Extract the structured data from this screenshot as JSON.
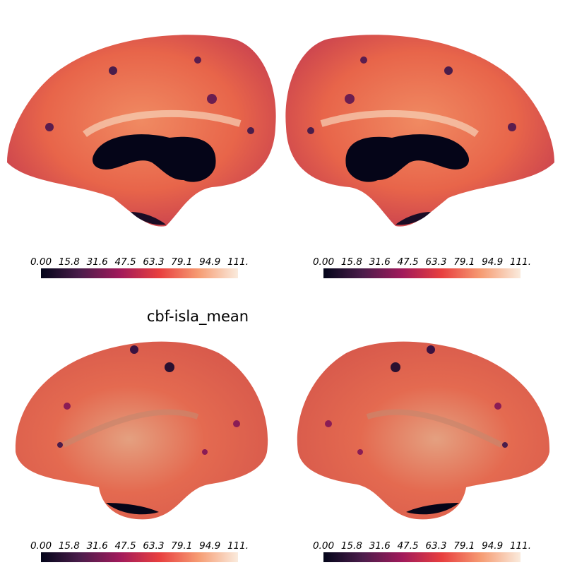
{
  "title": "cbf-isla_mean",
  "colorbars": [
    {
      "ticks": [
        "0.00",
        "15.8",
        "31.6",
        "47.5",
        "63.3",
        "79.1",
        "94.9",
        "111."
      ]
    },
    {
      "ticks": [
        "0.00",
        "15.8",
        "31.6",
        "47.5",
        "63.3",
        "79.1",
        "94.9",
        "111."
      ]
    },
    {
      "ticks": [
        "0.00",
        "15.8",
        "31.6",
        "47.5",
        "63.3",
        "79.1",
        "94.9",
        "111."
      ]
    },
    {
      "ticks": [
        "0.00",
        "15.8",
        "31.6",
        "47.5",
        "63.3",
        "79.1",
        "94.9",
        "111."
      ]
    }
  ]
}
